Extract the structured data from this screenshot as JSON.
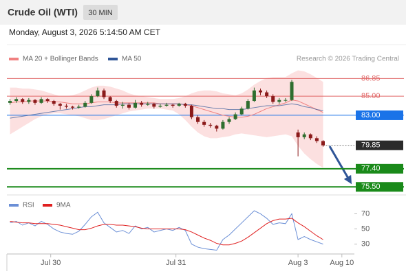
{
  "header": {
    "title": "Crude Oil (WTI)",
    "timeframe": "30 MIN",
    "datetime": "Monday, August 3, 2026 5:14:50 AM CET"
  },
  "chart_data": {
    "type": "candlestick",
    "credit": "Research © 2026 Trading Central",
    "xlim": [
      -0.5,
      55
    ],
    "xticks": [
      {
        "value": 6.5,
        "label": "Jul 30"
      },
      {
        "value": 26.5,
        "label": "Jul 31"
      },
      {
        "value": 46,
        "label": "Aug 3"
      },
      {
        "value": 53,
        "label": "Aug 10"
      }
    ],
    "ylim": [
      74.8,
      90.4
    ],
    "up_color": "#2f6e2f",
    "down_color": "#8b1a1a",
    "candles": [
      [
        84.3,
        84.7,
        84.1,
        84.5
      ],
      [
        84.5,
        84.9,
        84.3,
        84.7
      ],
      [
        84.7,
        84.8,
        84.2,
        84.4
      ],
      [
        84.4,
        84.8,
        84.2,
        84.6
      ],
      [
        84.6,
        84.7,
        84.1,
        84.3
      ],
      [
        84.3,
        84.9,
        84.2,
        84.7
      ],
      [
        84.7,
        84.8,
        84.3,
        84.5
      ],
      [
        84.5,
        84.6,
        84.0,
        84.2
      ],
      [
        84.2,
        84.3,
        83.6,
        84.0
      ],
      [
        84.0,
        84.2,
        83.7,
        83.9
      ],
      [
        83.9,
        84.0,
        83.6,
        83.8
      ],
      [
        83.8,
        84.1,
        83.7,
        83.9
      ],
      [
        83.9,
        84.5,
        83.8,
        84.3
      ],
      [
        84.3,
        85.2,
        84.2,
        85.0
      ],
      [
        85.0,
        85.9,
        84.9,
        85.6
      ],
      [
        85.6,
        85.8,
        84.7,
        84.9
      ],
      [
        84.9,
        85.0,
        84.3,
        84.5
      ],
      [
        84.5,
        84.6,
        83.8,
        84.0
      ],
      [
        84.0,
        84.4,
        83.7,
        84.1
      ],
      [
        84.1,
        84.3,
        83.6,
        83.8
      ],
      [
        83.8,
        84.6,
        83.7,
        84.3
      ],
      [
        84.3,
        84.5,
        83.9,
        84.1
      ],
      [
        84.1,
        84.4,
        84.0,
        84.2
      ],
      [
        84.2,
        84.3,
        83.7,
        83.9
      ],
      [
        83.9,
        84.2,
        83.8,
        84.0
      ],
      [
        84.0,
        84.3,
        83.9,
        84.1
      ],
      [
        84.1,
        84.2,
        83.8,
        84.0
      ],
      [
        84.0,
        84.3,
        83.9,
        84.2
      ],
      [
        84.2,
        84.3,
        83.8,
        84.0
      ],
      [
        84.0,
        84.1,
        82.6,
        82.8
      ],
      [
        82.8,
        83.0,
        82.1,
        82.3
      ],
      [
        82.3,
        82.5,
        81.8,
        82.0
      ],
      [
        82.0,
        82.2,
        81.7,
        81.9
      ],
      [
        81.9,
        82.0,
        81.3,
        81.6
      ],
      [
        81.6,
        82.5,
        81.5,
        82.3
      ],
      [
        82.3,
        82.8,
        82.1,
        82.6
      ],
      [
        82.6,
        83.3,
        82.5,
        83.1
      ],
      [
        83.1,
        83.9,
        83.0,
        83.7
      ],
      [
        83.7,
        84.7,
        83.6,
        84.5
      ],
      [
        84.5,
        85.9,
        84.4,
        85.6
      ],
      [
        85.6,
        85.8,
        85.1,
        85.4
      ],
      [
        85.4,
        85.6,
        84.8,
        85.0
      ],
      [
        85.0,
        85.2,
        84.2,
        84.4
      ],
      [
        84.4,
        84.8,
        84.2,
        84.6
      ],
      [
        84.6,
        84.8,
        84.4,
        84.6
      ],
      [
        84.6,
        86.7,
        84.5,
        86.5
      ],
      [
        81.2,
        81.5,
        78.7,
        80.7
      ],
      [
        80.7,
        81.2,
        80.5,
        81.0
      ],
      [
        81.0,
        81.1,
        80.4,
        80.6
      ],
      [
        80.6,
        80.8,
        80.1,
        80.3
      ],
      [
        80.3,
        80.4,
        79.7,
        79.85
      ]
    ],
    "ma20": {
      "name": "MA 20 + Bollinger Bands",
      "color": "#f08080",
      "values": [
        84.3,
        84.4,
        84.4,
        84.5,
        84.5,
        84.5,
        84.5,
        84.4,
        84.4,
        84.3,
        84.2,
        84.2,
        84.2,
        84.3,
        84.4,
        84.4,
        84.4,
        84.3,
        84.3,
        84.3,
        84.3,
        84.3,
        84.3,
        84.3,
        84.2,
        84.2,
        84.2,
        84.2,
        84.1,
        84.0,
        83.8,
        83.6,
        83.4,
        83.2,
        83.0,
        82.9,
        82.8,
        82.8,
        82.9,
        83.1,
        83.4,
        83.7,
        83.9,
        84.1,
        84.3,
        84.6,
        84.5,
        84.2,
        83.9,
        83.6,
        83.3
      ]
    },
    "ma50": {
      "name": "MA 50",
      "color": "#2f5597",
      "values": [
        82.7,
        82.8,
        82.9,
        83.0,
        83.1,
        83.2,
        83.3,
        83.4,
        83.5,
        83.6,
        83.7,
        83.8,
        83.9,
        83.9,
        84.0,
        84.1,
        84.1,
        84.1,
        84.2,
        84.2,
        84.2,
        84.2,
        84.2,
        84.2,
        84.2,
        84.2,
        84.2,
        84.2,
        84.1,
        84.1,
        84.0,
        83.9,
        83.8,
        83.7,
        83.7,
        83.6,
        83.6,
        83.6,
        83.7,
        83.8,
        83.9,
        84.0,
        84.0,
        84.0,
        84.1,
        84.2,
        84.1,
        83.9,
        83.8,
        83.6,
        83.5
      ]
    },
    "bollinger": {
      "color": "#fbd5d5",
      "upper": [
        85.9,
        85.9,
        85.8,
        85.8,
        85.7,
        85.6,
        85.4,
        85.2,
        85.0,
        85.0,
        85.1,
        85.3,
        85.6,
        85.9,
        86.1,
        86.1,
        86.0,
        85.8,
        85.6,
        85.3,
        85.1,
        85.0,
        84.9,
        84.8,
        84.7,
        84.7,
        84.7,
        84.8,
        85.0,
        85.3,
        85.5,
        85.6,
        85.6,
        85.5,
        85.3,
        85.2,
        85.1,
        85.3,
        85.7,
        86.2,
        86.6,
        86.9,
        87.0,
        87.0,
        87.0,
        87.4,
        87.7,
        87.6,
        87.3,
        86.9,
        86.5
      ],
      "lower": [
        81.0,
        81.4,
        81.8,
        82.2,
        82.6,
        82.9,
        83.1,
        83.2,
        83.2,
        83.1,
        83.0,
        82.9,
        82.7,
        82.5,
        82.5,
        82.6,
        82.8,
        83.0,
        83.2,
        83.4,
        83.5,
        83.6,
        83.7,
        83.7,
        83.7,
        83.6,
        83.5,
        83.1,
        82.5,
        81.8,
        81.2,
        80.8,
        80.6,
        80.6,
        80.7,
        80.8,
        81.0,
        81.1,
        81.0,
        80.9,
        80.8,
        80.7,
        80.8,
        80.9,
        81.0,
        80.8,
        79.8,
        79.0,
        78.4,
        77.9,
        77.5
      ]
    },
    "levels": [
      {
        "value": 86.85,
        "color": "#e06666",
        "style": "text",
        "line_width": 1
      },
      {
        "value": 85,
        "label": "85.00",
        "color": "#e06666",
        "style": "text",
        "line_width": 1
      },
      {
        "value": 83,
        "label": "83.00",
        "color": "#1a73e8",
        "style": "box",
        "line_width": 1
      },
      {
        "value": 79.85,
        "color": "#2b2b2b",
        "style": "dotted",
        "line_width": 1
      },
      {
        "value": 77.4,
        "label": "77.40",
        "color": "#1a8a1a",
        "style": "box",
        "line_width": 2
      },
      {
        "value": 75.5,
        "label": "75.50",
        "color": "#1a8a1a",
        "style": "box",
        "line_width": 2
      }
    ],
    "rsi": {
      "name": "RSI",
      "color": "#6b8fd6",
      "values": [
        58,
        60,
        55,
        58,
        54,
        60,
        56,
        50,
        46,
        44,
        43,
        47,
        56,
        66,
        72,
        58,
        52,
        46,
        48,
        44,
        54,
        50,
        52,
        46,
        48,
        50,
        48,
        52,
        48,
        30,
        26,
        24,
        23,
        22,
        36,
        42,
        50,
        58,
        66,
        74,
        70,
        64,
        56,
        58,
        57,
        70,
        36,
        40,
        36,
        33,
        30
      ]
    },
    "rsi_ma": {
      "name": "9MA",
      "color": "#e02020",
      "values": [
        60,
        59,
        58,
        58,
        57,
        57,
        57,
        56,
        55,
        53,
        51,
        49,
        49,
        51,
        54,
        56,
        56,
        55,
        55,
        54,
        53,
        51,
        50,
        50,
        50,
        50,
        50,
        50,
        49,
        46,
        42,
        38,
        35,
        31,
        29,
        29,
        31,
        34,
        39,
        45,
        51,
        57,
        61,
        63,
        63,
        64,
        58,
        53,
        47,
        41,
        36
      ]
    },
    "rsi_ylim": [
      17,
      93
    ],
    "rsi_yticks": [
      30,
      50,
      70
    ]
  }
}
